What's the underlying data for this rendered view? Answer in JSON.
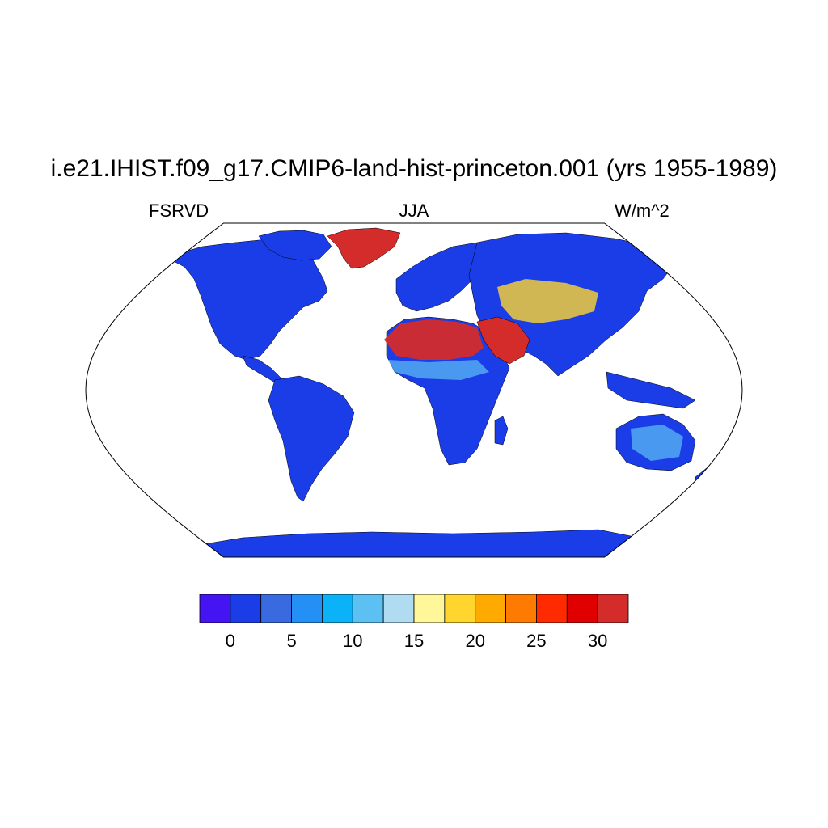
{
  "title": "i.e21.IHIST.f09_g17.CMIP6-land-hist-princeton.001 (yrs 1955-1989)",
  "left_label": "FSRVD",
  "center_label": "JJA",
  "right_label": "W/m^2",
  "map": {
    "projection": "Robinson",
    "land_default_color": "#1a3de8",
    "ocean_color": "#ffffff"
  },
  "colorbar": {
    "colors": [
      "#4514f2",
      "#1a3de8",
      "#3a6ae0",
      "#2490f5",
      "#0cb2f7",
      "#5cc0f2",
      "#b0dcf2",
      "#fff799",
      "#ffd52e",
      "#ffaa00",
      "#ff7a00",
      "#ff2a00",
      "#e00000",
      "#d42b2b"
    ],
    "tick_labels": [
      "0",
      "5",
      "10",
      "15",
      "20",
      "25",
      "30"
    ]
  }
}
